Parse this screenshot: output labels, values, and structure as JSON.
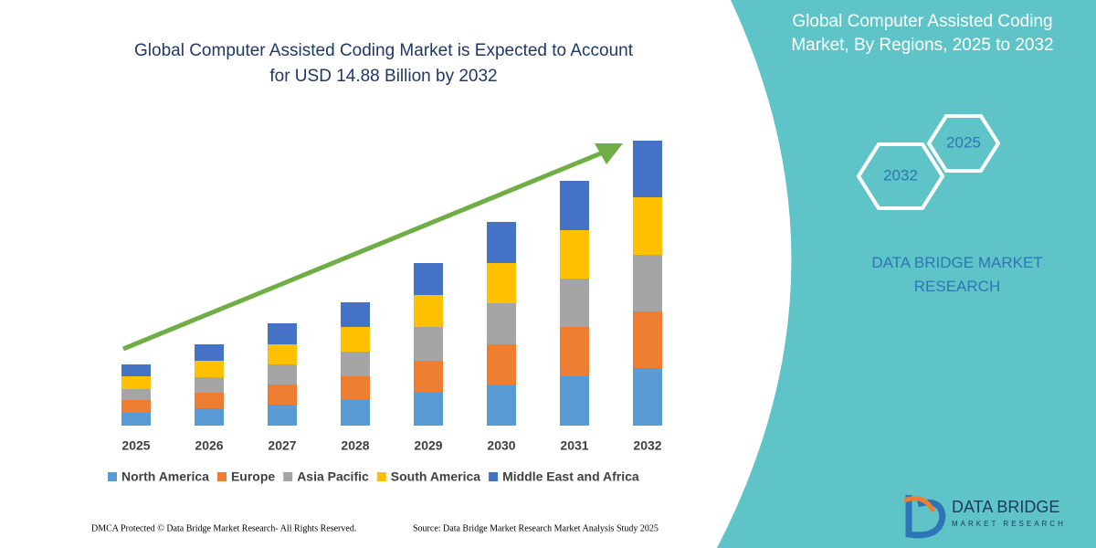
{
  "chart_data": {
    "type": "stacked-bar",
    "title": "Global Computer Assisted Coding Market is Expected to Account for USD 14.88 Billion by 2032",
    "categories": [
      "2025",
      "2026",
      "2027",
      "2028",
      "2029",
      "2030",
      "2031",
      "2032"
    ],
    "series": [
      {
        "name": "North America",
        "color": "#5b9bd5",
        "values": [
          14,
          19,
          23,
          28,
          36,
          44,
          54,
          63
        ]
      },
      {
        "name": "Europe",
        "color": "#ed7d31",
        "values": [
          14,
          17,
          22,
          26,
          35,
          45,
          54,
          62
        ]
      },
      {
        "name": "Asia Pacific",
        "color": "#a5a5a5",
        "values": [
          12,
          17,
          22,
          27,
          37,
          45,
          53,
          62
        ]
      },
      {
        "name": "South America",
        "color": "#ffc000",
        "values": [
          14,
          18,
          22,
          27,
          35,
          44,
          53,
          63
        ]
      },
      {
        "name": "Middle East and Africa",
        "color": "#4472c4",
        "values": [
          13,
          18,
          23,
          27,
          35,
          45,
          54,
          62
        ]
      }
    ],
    "legend": "bottom"
  },
  "panel": {
    "title": "Global Computer Assisted Coding Market, By Regions, 2025 to 2032",
    "hex_start": "2025",
    "hex_end": "2032",
    "brand": "DATA BRIDGE MARKET RESEARCH"
  },
  "logo": {
    "name": "DATA BRIDGE",
    "tagline": "MARKET RESEARCH"
  },
  "footer": {
    "left": "DMCA Protected © Data Bridge Market Research- All Rights Reserved.",
    "right": "Source: Data Bridge Market Research Market Analysis Study 2025"
  }
}
